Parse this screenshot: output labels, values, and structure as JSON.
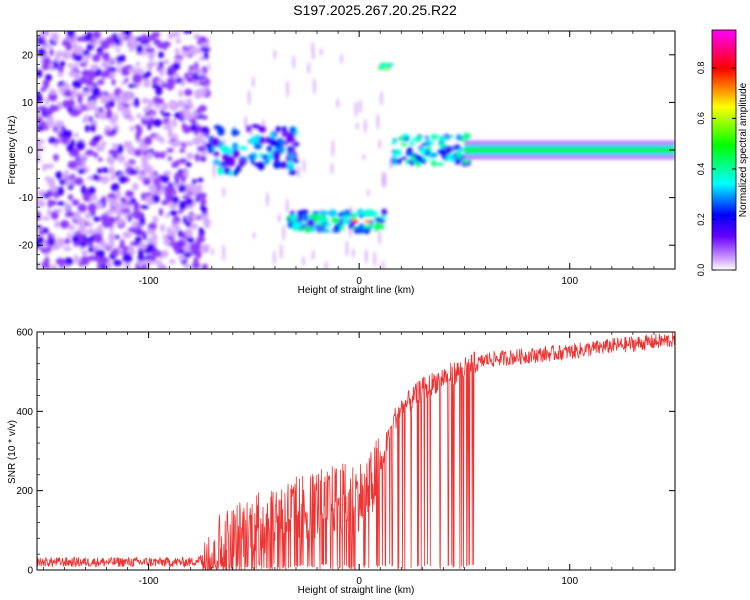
{
  "figure_title": "S197.2025.267.20.25.R22",
  "chart_data": [
    {
      "type": "heatmap",
      "xlabel": "Height of straight line (km)",
      "ylabel": "Frequency (Hz)",
      "xlim": [
        -153,
        150
      ],
      "ylim": [
        -25,
        25
      ],
      "xticks": [
        -100,
        0,
        100
      ],
      "yticks": [
        -20,
        -10,
        0,
        10,
        20
      ],
      "colorbar": {
        "label": "Normalized spectral amplitude",
        "range": [
          0,
          0.95
        ],
        "ticks": [
          0.0,
          0.2,
          0.4,
          0.6,
          0.8
        ],
        "colors": [
          "#ffffff",
          "#cc99ff",
          "#6600ff",
          "#0000ff",
          "#00ffff",
          "#00ff00",
          "#ffff00",
          "#ff0000",
          "#ff00ff"
        ]
      },
      "regions": [
        {
          "x": [
            -153,
            -72
          ],
          "freq": "broadband noise",
          "amplitude": 0.1
        },
        {
          "x": [
            -72,
            -30
          ],
          "freq_center": 0,
          "freq_spread": 6,
          "amplitude": 0.3
        },
        {
          "x": [
            -33,
            12
          ],
          "freq_center": -15,
          "freq_spread": 2,
          "amplitude": 0.6
        },
        {
          "x": [
            9,
            16
          ],
          "freq_center": 17.5,
          "freq_spread": 1,
          "amplitude": 0.5
        },
        {
          "x": [
            16,
            52
          ],
          "freq_center": 0,
          "freq_spread": 3,
          "amplitude": 0.35
        },
        {
          "x": [
            52,
            150
          ],
          "freq_center": 0,
          "freq_spread": 1,
          "amplitude": 0.5
        }
      ]
    },
    {
      "type": "line",
      "xlabel": "Height of straight line (km)",
      "ylabel": "SNR (10 * v/v)",
      "xlim": [
        -153,
        150
      ],
      "ylim": [
        0,
        600
      ],
      "xticks": [
        -100,
        0,
        100
      ],
      "yticks": [
        0,
        200,
        400,
        600
      ],
      "color": "#ee3333",
      "trend": [
        [
          -153,
          15
        ],
        [
          -80,
          15
        ],
        [
          -70,
          30
        ],
        [
          -60,
          60
        ],
        [
          -50,
          90
        ],
        [
          -40,
          120
        ],
        [
          -30,
          130
        ],
        [
          -20,
          150
        ],
        [
          -10,
          160
        ],
        [
          0,
          170
        ],
        [
          5,
          185
        ],
        [
          10,
          250
        ],
        [
          15,
          360
        ],
        [
          20,
          400
        ],
        [
          30,
          450
        ],
        [
          40,
          480
        ],
        [
          50,
          500
        ],
        [
          60,
          530
        ],
        [
          80,
          540
        ],
        [
          100,
          550
        ],
        [
          120,
          565
        ],
        [
          150,
          580
        ]
      ]
    }
  ]
}
